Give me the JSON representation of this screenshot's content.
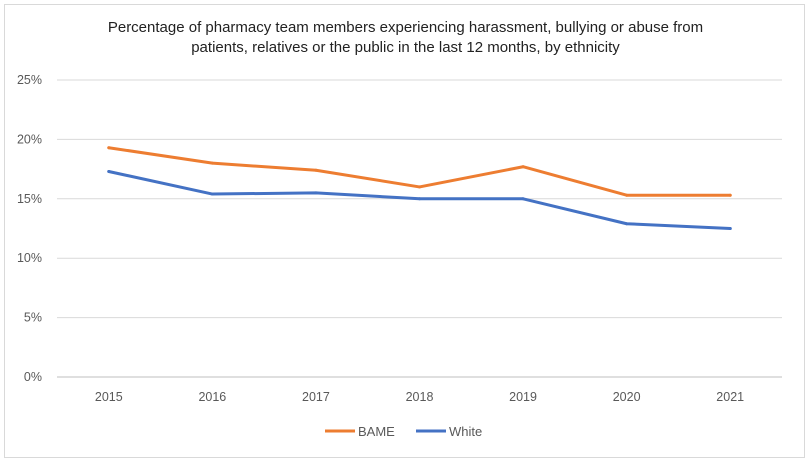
{
  "chart_data": {
    "type": "line",
    "title_lines": [
      "Percentage of pharmacy team members experiencing harassment, bullying or abuse from",
      "patients, relatives or the public in the last 12 months, by ethnicity"
    ],
    "categories": [
      "2015",
      "2016",
      "2017",
      "2018",
      "2019",
      "2020",
      "2021"
    ],
    "yticks": [
      0,
      5,
      10,
      15,
      20,
      25
    ],
    "ytick_labels": [
      "0%",
      "5%",
      "10%",
      "15%",
      "20%",
      "25%"
    ],
    "ylim": [
      0,
      25
    ],
    "grid": true,
    "legend_position": "bottom",
    "series": [
      {
        "name": "BAME",
        "color": "#ED7D31",
        "values": [
          19.3,
          18.0,
          17.4,
          16.0,
          17.7,
          15.3,
          15.3
        ]
      },
      {
        "name": "White",
        "color": "#4472C4",
        "values": [
          17.3,
          15.4,
          15.5,
          15.0,
          15.0,
          12.9,
          12.5
        ]
      }
    ]
  }
}
